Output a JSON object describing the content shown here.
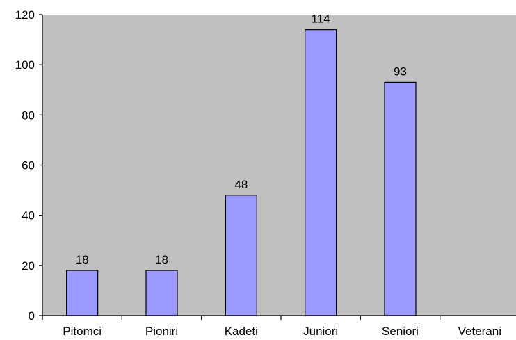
{
  "chart_data": {
    "type": "bar",
    "categories": [
      "Pitomci",
      "Pioniri",
      "Kadeti",
      "Juniori",
      "Seniori",
      "Veterani"
    ],
    "values": [
      18,
      18,
      48,
      114,
      93,
      null
    ],
    "data_labels": [
      "18",
      "18",
      "48",
      "114",
      "93",
      ""
    ],
    "ylim": [
      0,
      120
    ],
    "yticks": [
      0,
      20,
      40,
      60,
      80,
      100,
      120
    ],
    "title": "",
    "xlabel": "",
    "ylabel": "",
    "grid": false,
    "legend": "none",
    "colors": {
      "plot_background": "#c0c0c0",
      "bar_fill": "#9999ff",
      "bar_stroke": "#000000"
    }
  }
}
